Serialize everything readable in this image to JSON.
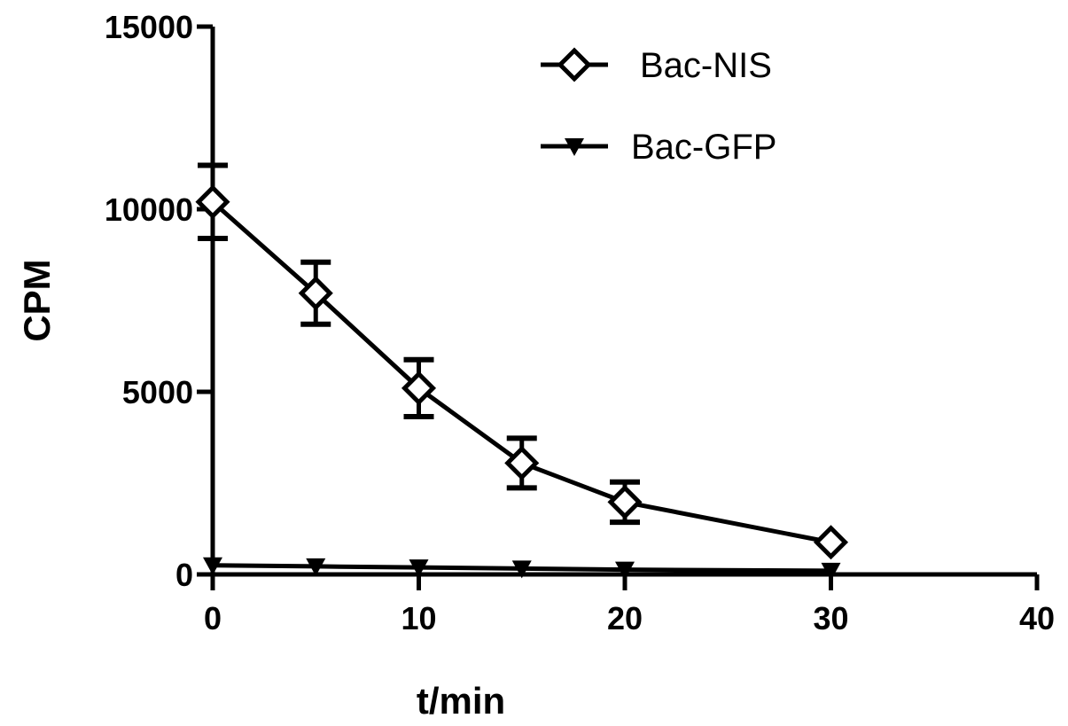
{
  "chart_data": {
    "type": "line",
    "title": "",
    "xlabel": "t/min",
    "ylabel": "CPM",
    "xlim": [
      0,
      40
    ],
    "ylim": [
      0,
      15000
    ],
    "xticks": [
      0,
      10,
      20,
      30,
      40
    ],
    "yticks": [
      0,
      5000,
      10000,
      15000
    ],
    "legend_position": "top-right",
    "grid": false,
    "series": [
      {
        "name": "Bac-NIS",
        "marker": "diamond-open",
        "color": "#000000",
        "x": [
          0,
          5,
          10,
          15,
          20,
          30
        ],
        "y": [
          10200,
          7700,
          5100,
          3050,
          1980,
          880
        ],
        "error": [
          1000,
          850,
          780,
          680,
          550,
          0
        ]
      },
      {
        "name": "Bac-GFP",
        "marker": "triangle-down-filled",
        "color": "#000000",
        "x": [
          0,
          5,
          10,
          15,
          20,
          30
        ],
        "y": [
          250,
          220,
          190,
          160,
          130,
          100
        ],
        "error": [
          0,
          0,
          0,
          0,
          0,
          0
        ]
      }
    ]
  }
}
